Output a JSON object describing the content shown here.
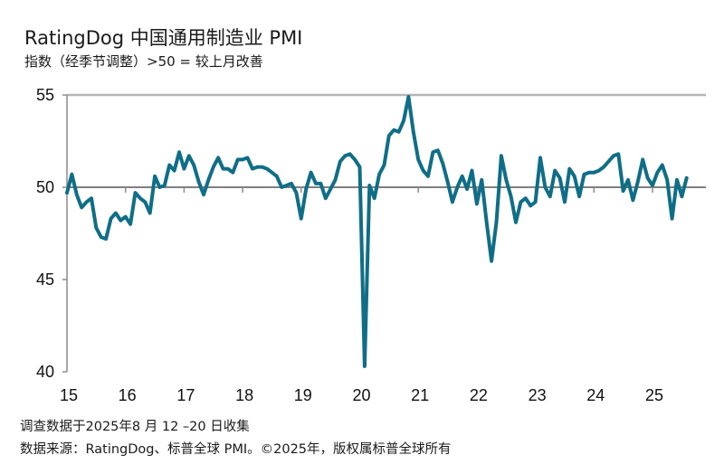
{
  "title": "RatingDog 中国通用制造业 PMI",
  "subtitle": "指数（经季节调整）>50 = 较上月改善",
  "footer": {
    "survey_note": "调查数据于2025年8 月 12 –20 日收集",
    "source": "数据来源：RatingDog、标普全球 PMI。©2025年，版权属标普全球所有"
  },
  "chart_data": {
    "type": "line",
    "title": "RatingDog 中国通用制造业 PMI",
    "xlabel": "",
    "ylabel": "",
    "ylim": [
      40,
      55
    ],
    "yticks": [
      "40",
      "45",
      "50",
      "55"
    ],
    "xticks": [
      "15",
      "16",
      "17",
      "18",
      "19",
      "20",
      "21",
      "22",
      "23",
      "24",
      "25"
    ],
    "reference_line": 50,
    "color": "#0f6e87",
    "frequency": "monthly",
    "start": "2015-01",
    "end": "2025-08",
    "values": [
      49.7,
      50.7,
      49.6,
      48.9,
      49.2,
      49.4,
      47.8,
      47.3,
      47.2,
      48.3,
      48.6,
      48.2,
      48.4,
      48.0,
      49.7,
      49.4,
      49.2,
      48.6,
      50.6,
      50.0,
      50.1,
      51.2,
      50.9,
      51.9,
      51.0,
      51.7,
      51.2,
      50.3,
      49.6,
      50.4,
      51.1,
      51.6,
      51.0,
      51.0,
      50.8,
      51.5,
      51.5,
      51.6,
      51.0,
      51.1,
      51.1,
      51.0,
      50.8,
      50.6,
      50.0,
      50.1,
      50.2,
      49.7,
      48.3,
      49.9,
      50.8,
      50.2,
      50.2,
      49.4,
      49.9,
      50.4,
      51.4,
      51.7,
      51.8,
      51.5,
      51.1,
      40.3,
      50.1,
      49.4,
      50.7,
      51.2,
      52.8,
      53.1,
      53.0,
      53.6,
      54.9,
      53.0,
      51.5,
      50.9,
      50.6,
      51.9,
      52.0,
      51.3,
      50.3,
      49.2,
      50.0,
      50.6,
      49.9,
      50.9,
      49.1,
      50.4,
      48.1,
      46.0,
      48.1,
      51.7,
      50.4,
      49.5,
      48.1,
      49.2,
      49.4,
      49.0,
      49.2,
      51.6,
      50.0,
      49.5,
      50.9,
      50.5,
      49.2,
      51.0,
      50.6,
      49.5,
      50.7,
      50.8,
      50.8,
      50.9,
      51.1,
      51.4,
      51.7,
      51.8,
      49.8,
      50.4,
      49.3,
      50.3,
      51.5,
      50.5,
      50.1,
      50.8,
      51.2,
      50.4,
      48.3,
      50.4,
      49.5,
      50.5
    ]
  }
}
